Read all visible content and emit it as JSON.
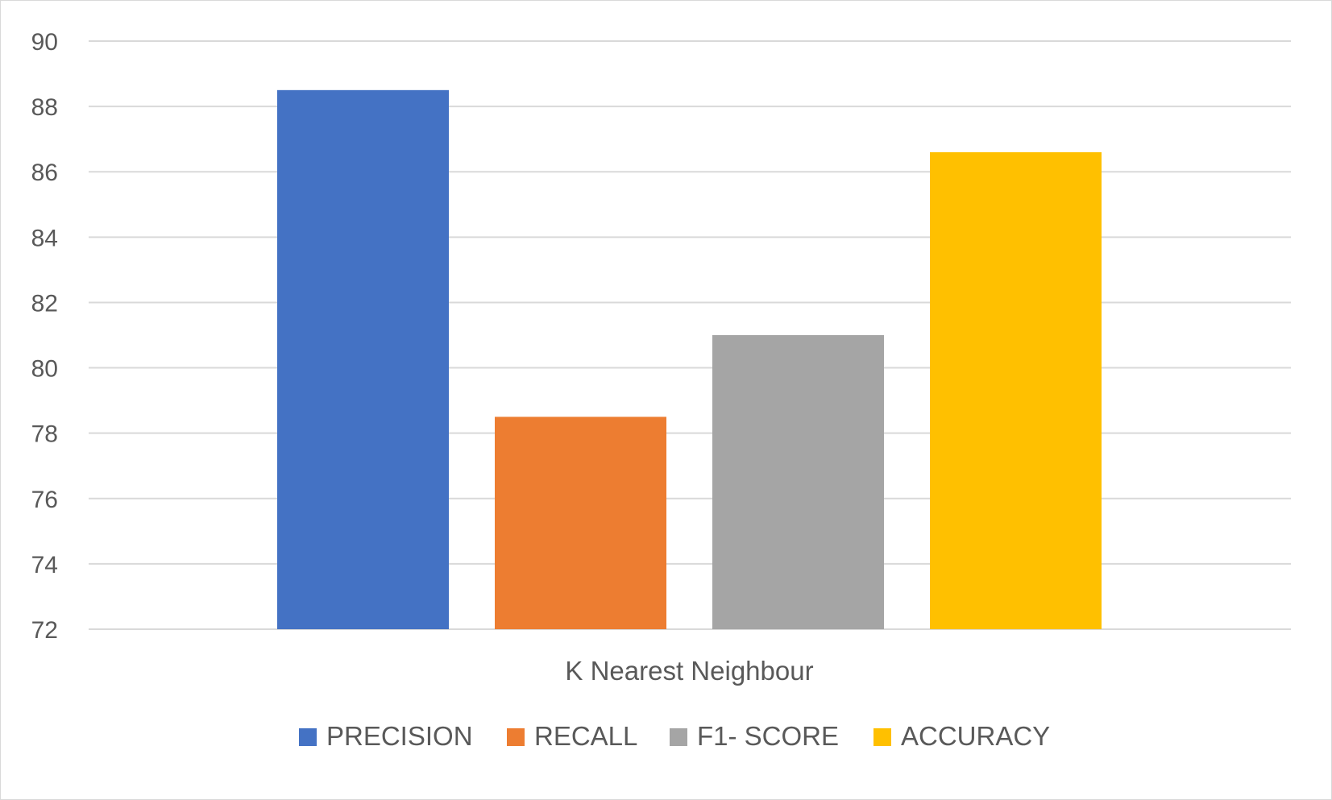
{
  "chart_data": {
    "type": "bar",
    "categories": [
      "K Nearest Neighbour"
    ],
    "series": [
      {
        "name": "PRECISION",
        "values": [
          88.5
        ],
        "color": "#4472C4"
      },
      {
        "name": "RECALL",
        "values": [
          78.5
        ],
        "color": "#ED7D31"
      },
      {
        "name": "F1- SCORE",
        "values": [
          81.0
        ],
        "color": "#A5A5A5"
      },
      {
        "name": "ACCURACY",
        "values": [
          86.6
        ],
        "color": "#FFC000"
      }
    ],
    "ylim": [
      72,
      90
    ],
    "yticks": [
      "72",
      "74",
      "76",
      "78",
      "80",
      "82",
      "84",
      "86",
      "88",
      "90"
    ],
    "grid": true,
    "legend_position": "bottom"
  }
}
